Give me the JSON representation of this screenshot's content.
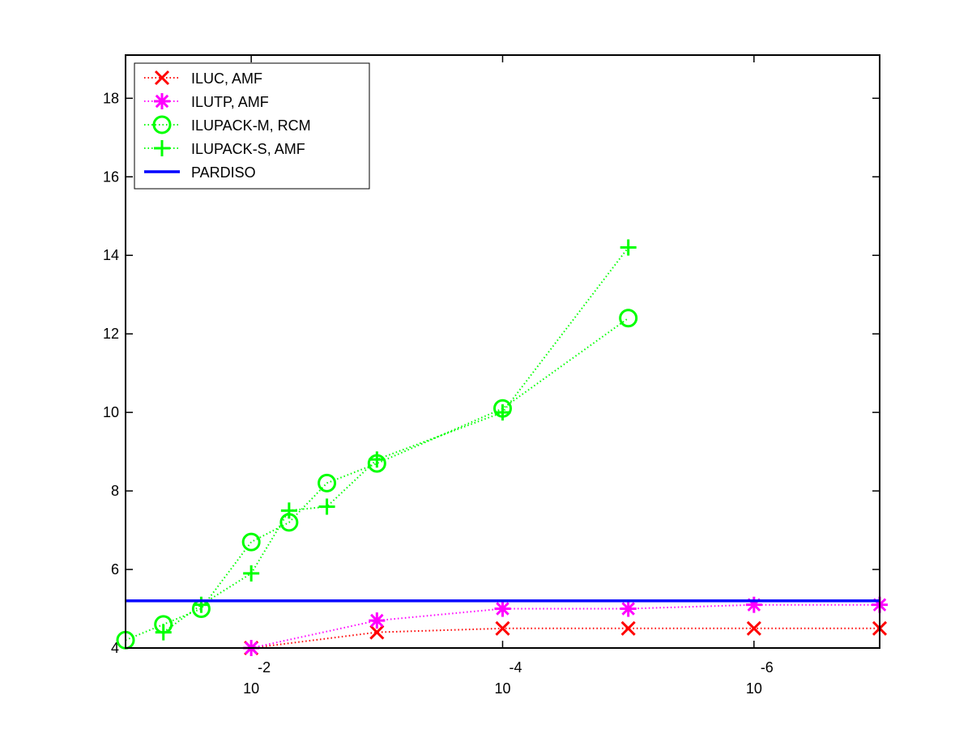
{
  "chart_data": {
    "type": "line",
    "x_axis": {
      "scale": "log",
      "reversed": true,
      "ticks": [
        {
          "value": 0.01,
          "base": "10",
          "exponent": "-2"
        },
        {
          "value": 0.0001,
          "base": "10",
          "exponent": "-4"
        },
        {
          "value": 1e-06,
          "base": "10",
          "exponent": "-6"
        }
      ]
    },
    "y_axis": {
      "ylim": [
        4,
        19.1
      ],
      "ticks": [
        {
          "value": 4,
          "label": "4"
        },
        {
          "value": 6,
          "label": "6"
        },
        {
          "value": 8,
          "label": "8"
        },
        {
          "value": 10,
          "label": "10"
        },
        {
          "value": 12,
          "label": "12"
        },
        {
          "value": 14,
          "label": "14"
        },
        {
          "value": 16,
          "label": "16"
        },
        {
          "value": 18,
          "label": "18"
        }
      ]
    },
    "xlim": [
      0.1,
      1e-07
    ],
    "grid": false,
    "legend_position": "top-left",
    "series": [
      {
        "name": "ILUC, AMF",
        "color": "#ff0000",
        "marker": "x",
        "line": "dotted",
        "x": [
          0.01,
          0.001,
          0.0001,
          1e-05,
          1e-06,
          1e-07
        ],
        "y": [
          4.0,
          4.4,
          4.5,
          4.5,
          4.5,
          4.5
        ]
      },
      {
        "name": "ILUTP, AMF",
        "color": "#ff00ff",
        "marker": "asterisk",
        "line": "dotted",
        "x": [
          0.01,
          0.001,
          0.0001,
          1e-05,
          1e-06,
          1e-07
        ],
        "y": [
          4.0,
          4.7,
          5.0,
          5.0,
          5.1,
          5.1
        ]
      },
      {
        "name": "ILUPACK-M, RCM",
        "color": "#00ff00",
        "marker": "circle",
        "line": "dotted",
        "x": [
          0.1,
          0.05,
          0.025,
          0.01,
          0.005,
          0.0025,
          0.001,
          0.0001,
          1e-05
        ],
        "y": [
          4.2,
          4.6,
          5.0,
          6.7,
          7.2,
          8.2,
          8.7,
          10.1,
          12.4
        ]
      },
      {
        "name": "ILUPACK-S, AMF",
        "color": "#00ff00",
        "marker": "plus",
        "line": "dotted",
        "x": [
          0.05,
          0.025,
          0.01,
          0.005,
          0.0025,
          0.001,
          0.0001,
          1e-05
        ],
        "y": [
          4.4,
          5.1,
          5.9,
          7.5,
          7.6,
          8.8,
          10.0,
          14.2
        ]
      },
      {
        "name": "PARDISO",
        "color": "#0000ff",
        "marker": "none",
        "line": "solid",
        "x": [
          0.1,
          1e-07
        ],
        "y": [
          5.2,
          5.2
        ]
      }
    ]
  }
}
